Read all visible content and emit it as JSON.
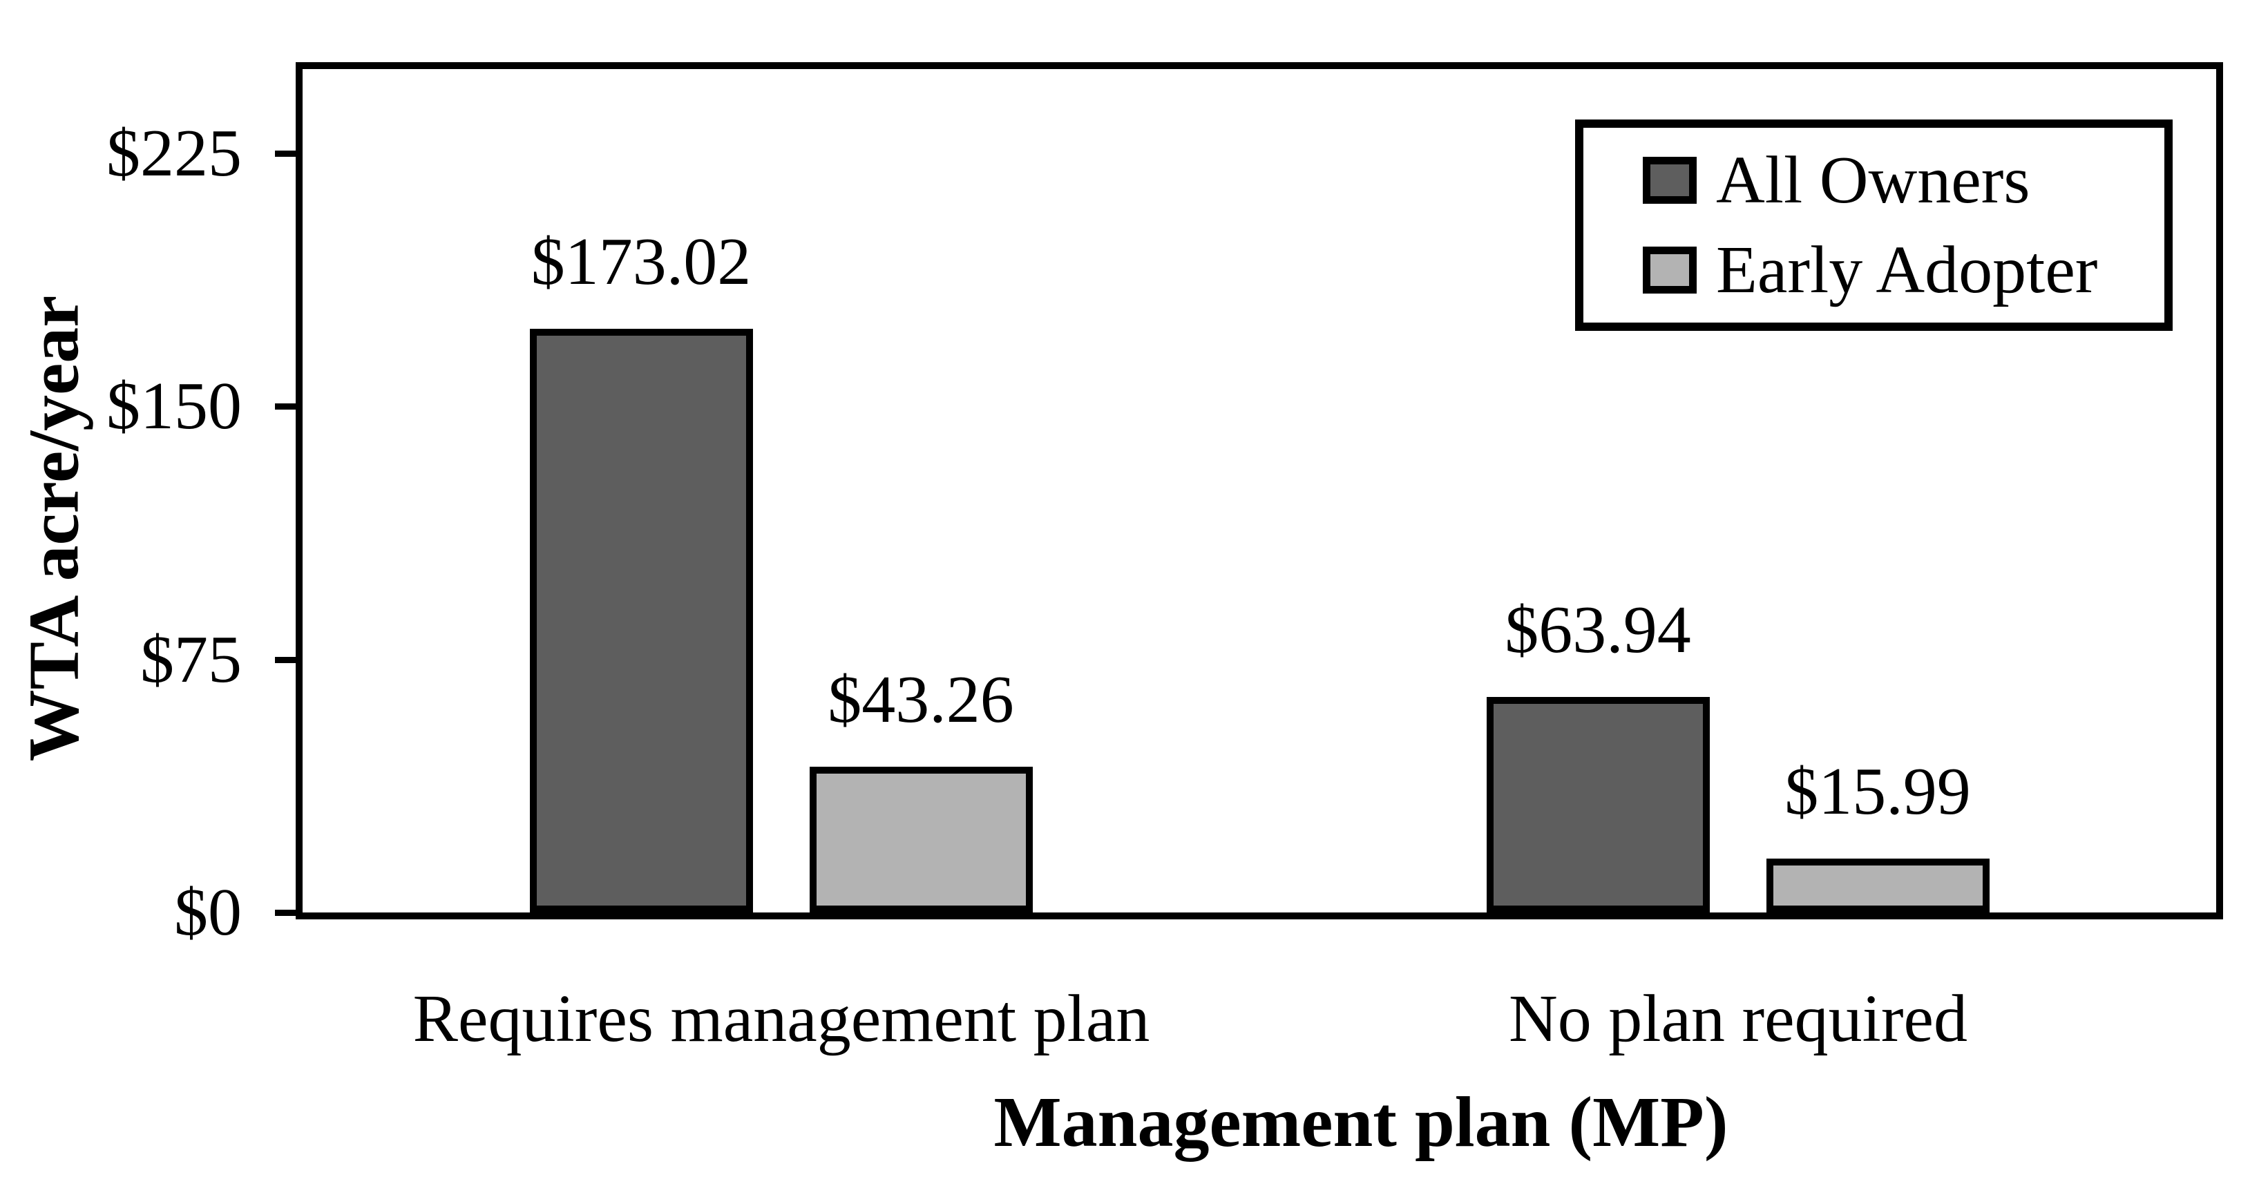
{
  "chart_data": {
    "type": "bar",
    "categories": [
      "Requires management plan",
      "No plan required"
    ],
    "series": [
      {
        "name": "All Owners",
        "color": "#5E5E5E",
        "values": [
          173.02,
          63.94
        ]
      },
      {
        "name": "Early Adopter",
        "color": "#B3B3B3",
        "values": [
          43.26,
          15.99
        ]
      }
    ],
    "value_labels": [
      [
        "$173.02",
        "$63.94"
      ],
      [
        "$43.26",
        "$15.99"
      ]
    ],
    "xlabel": "Management plan (MP)",
    "ylabel": "WTA acre/year",
    "ylim": [
      0,
      250
    ],
    "yticks": [
      {
        "value": 0,
        "label": "$0"
      },
      {
        "value": 75,
        "label": "$75"
      },
      {
        "value": 150,
        "label": "$150"
      },
      {
        "value": 225,
        "label": "$225"
      }
    ],
    "legend_position": "top-right",
    "grid": false
  }
}
